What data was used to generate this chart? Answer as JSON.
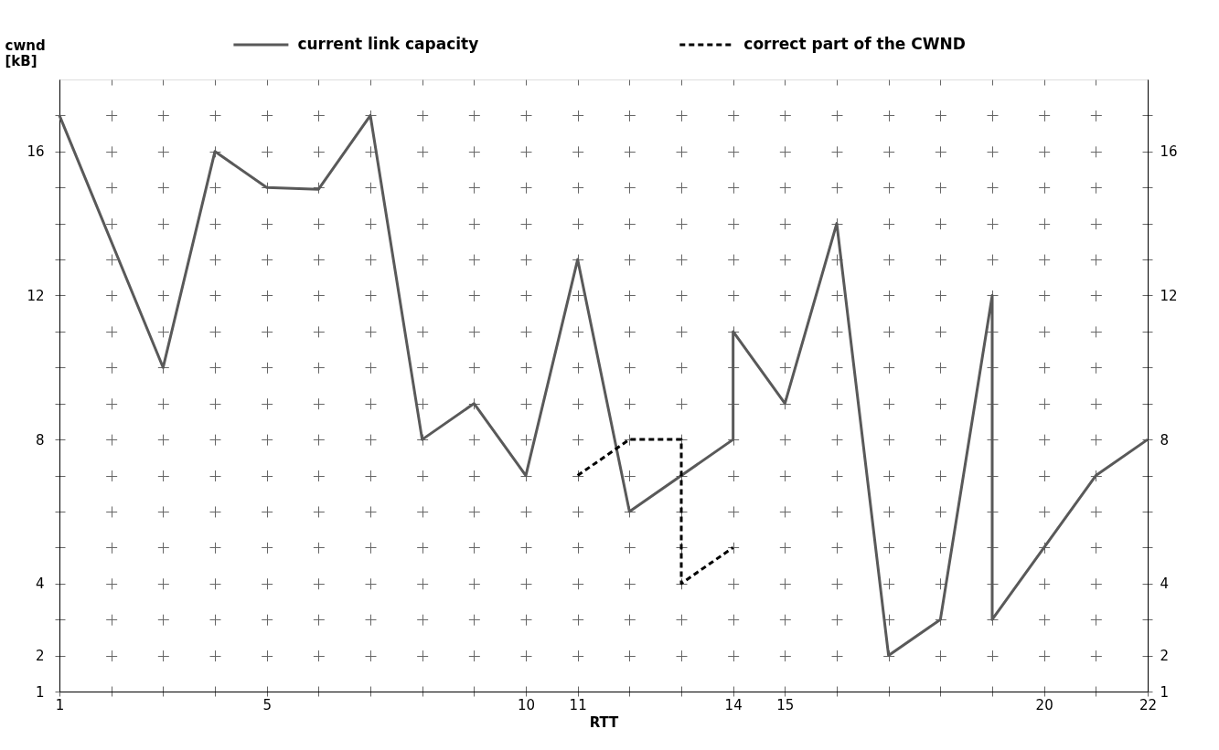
{
  "chart_data": {
    "type": "line",
    "xlabel": "RTT",
    "ylabel": "cwnd [kB]",
    "xlim": [
      1,
      22
    ],
    "xticks": [
      1,
      {
        "value": 2,
        "label": null
      },
      {
        "value": 3,
        "label": null
      },
      {
        "value": 4,
        "label": null
      },
      5,
      {
        "value": 6,
        "label": null
      },
      {
        "value": 7,
        "label": null
      },
      {
        "value": 8,
        "label": null
      },
      {
        "value": 9,
        "label": null
      },
      10,
      11,
      {
        "value": 12,
        "label": null
      },
      {
        "value": 13,
        "label": null
      },
      14,
      15,
      {
        "value": 16,
        "label": null
      },
      {
        "value": 17,
        "label": null
      },
      {
        "value": 18,
        "label": null
      },
      {
        "value": 19,
        "label": null
      },
      20,
      {
        "value": 21,
        "label": null
      },
      22
    ],
    "ylim": [
      1,
      18
    ],
    "yticks": [
      1,
      2,
      {
        "value": 3,
        "label": null
      },
      4,
      {
        "value": 5,
        "label": null
      },
      {
        "value": 6,
        "label": null
      },
      {
        "value": 7,
        "label": null
      },
      8,
      {
        "value": 9,
        "label": null
      },
      {
        "value": 10,
        "label": null
      },
      {
        "value": 11,
        "label": null
      },
      12,
      {
        "value": 13,
        "label": null
      },
      {
        "value": 14,
        "label": null
      },
      {
        "value": 15,
        "label": null
      },
      16,
      {
        "value": 17,
        "label": null
      }
    ],
    "y2lim": [
      1,
      18
    ],
    "y2ticks": [
      1,
      2,
      {
        "value": 3,
        "label": null
      },
      4,
      {
        "value": 5,
        "label": null
      },
      {
        "value": 6,
        "label": null
      },
      {
        "value": 7,
        "label": null
      },
      8,
      {
        "value": 9,
        "label": null
      },
      {
        "value": 10,
        "label": null
      },
      {
        "value": 11,
        "label": null
      },
      12,
      {
        "value": 13,
        "label": null
      },
      {
        "value": 14,
        "label": null
      },
      {
        "value": 15,
        "label": null
      },
      16,
      {
        "value": 17,
        "label": null
      }
    ],
    "grid": true,
    "legend": "top",
    "marker": "none",
    "series": [
      {
        "name": "current link capacity",
        "color": "#595959",
        "line_style": "solid",
        "x": [
          1,
          3,
          4,
          5,
          6,
          7,
          8,
          9,
          10,
          11,
          12,
          14,
          14,
          15,
          16,
          17,
          18,
          19,
          19,
          20,
          21,
          22
        ],
        "values": [
          17,
          10,
          16,
          15,
          14.95,
          17,
          8,
          9,
          7,
          13,
          6,
          8,
          11,
          9,
          14,
          2,
          3,
          12,
          3,
          5,
          7,
          8
        ]
      },
      {
        "name": "correct part of the CWND",
        "color": "#000000",
        "line_style": "dashed",
        "x": [
          11,
          12,
          13,
          13,
          14
        ],
        "values": [
          7,
          8,
          8,
          4,
          5
        ]
      }
    ]
  }
}
